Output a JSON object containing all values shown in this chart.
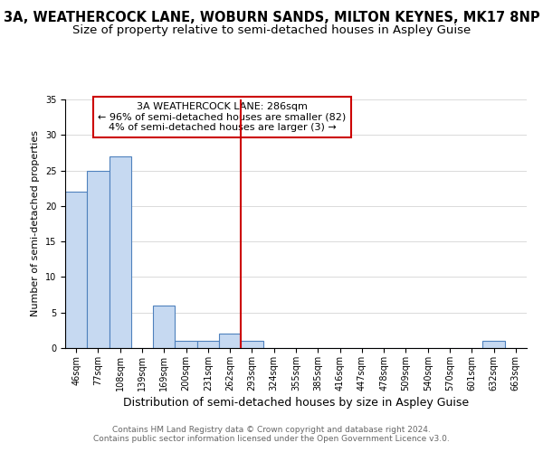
{
  "title": "3A, WEATHERCOCK LANE, WOBURN SANDS, MILTON KEYNES, MK17 8NP",
  "subtitle": "Size of property relative to semi-detached houses in Aspley Guise",
  "xlabel": "Distribution of semi-detached houses by size in Aspley Guise",
  "ylabel": "Number of semi-detached properties",
  "bin_labels": [
    "46sqm",
    "77sqm",
    "108sqm",
    "139sqm",
    "169sqm",
    "200sqm",
    "231sqm",
    "262sqm",
    "293sqm",
    "324sqm",
    "355sqm",
    "385sqm",
    "416sqm",
    "447sqm",
    "478sqm",
    "509sqm",
    "540sqm",
    "570sqm",
    "601sqm",
    "632sqm",
    "663sqm"
  ],
  "bar_heights": [
    22,
    25,
    27,
    0,
    6,
    1,
    1,
    2,
    1,
    0,
    0,
    0,
    0,
    0,
    0,
    0,
    0,
    0,
    0,
    1,
    0
  ],
  "bar_color": "#c6d9f1",
  "bar_edge_color": "#4f81bd",
  "vline_color": "#cc0000",
  "annotation_box_text": "3A WEATHERCOCK LANE: 286sqm\n← 96% of semi-detached houses are smaller (82)\n4% of semi-detached houses are larger (3) →",
  "annotation_box_edge_color": "#cc0000",
  "annotation_box_bg": "#ffffff",
  "ylim": [
    0,
    35
  ],
  "yticks": [
    0,
    5,
    10,
    15,
    20,
    25,
    30,
    35
  ],
  "footer_line1": "Contains HM Land Registry data © Crown copyright and database right 2024.",
  "footer_line2": "Contains public sector information licensed under the Open Government Licence v3.0.",
  "title_fontsize": 10.5,
  "subtitle_fontsize": 9.5,
  "xlabel_fontsize": 9,
  "ylabel_fontsize": 8,
  "tick_fontsize": 7,
  "annotation_fontsize": 8,
  "footer_fontsize": 6.5
}
